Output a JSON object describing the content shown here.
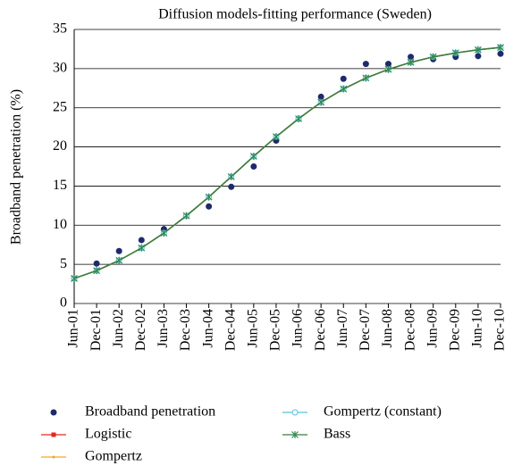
{
  "chart_data": {
    "type": "line",
    "title": "Diffusion models-fitting performance (Sweden)",
    "y_label": "Broadband penetration (%)",
    "categories": [
      "Jun-01",
      "Dec-01",
      "Jun-02",
      "Dec-02",
      "Jun-03",
      "Dec-03",
      "Jun-04",
      "Dec-04",
      "Jun-05",
      "Dec-05",
      "Jun-06",
      "Dec-06",
      "Jun-07",
      "Dec-07",
      "Jun-08",
      "Dec-08",
      "Jun-09",
      "Dec-09",
      "Jun-10",
      "Dec-10"
    ],
    "ylim": [
      0,
      35
    ],
    "yticks": [
      0,
      5,
      10,
      15,
      20,
      25,
      30,
      35
    ],
    "grid": true,
    "series": [
      {
        "name": "Broadband penetration",
        "color": "#1f2a6b",
        "marker": "circle",
        "line": false,
        "values": [
          3.2,
          5.1,
          6.7,
          8.1,
          9.5,
          11.2,
          12.4,
          14.9,
          17.5,
          20.8,
          23.6,
          26.4,
          28.7,
          30.6,
          30.6,
          31.5,
          31.2,
          31.5,
          31.6,
          31.9
        ]
      },
      {
        "name": "Logistic",
        "color": "#e3261f",
        "marker": "square",
        "line": true,
        "values": [
          3.2,
          4.2,
          5.5,
          7.1,
          9.0,
          11.2,
          13.6,
          16.2,
          18.8,
          21.3,
          23.6,
          25.7,
          27.4,
          28.8,
          29.9,
          30.8,
          31.5,
          32.0,
          32.4,
          32.7
        ]
      },
      {
        "name": "Gompertz",
        "color": "#f5a623",
        "marker": "dot",
        "line": true,
        "values": [
          3.2,
          4.2,
          5.5,
          7.1,
          9.0,
          11.2,
          13.6,
          16.2,
          18.8,
          21.3,
          23.6,
          25.7,
          27.4,
          28.8,
          29.9,
          30.8,
          31.5,
          32.0,
          32.4,
          32.7
        ]
      },
      {
        "name": "Gompertz (constant)",
        "color": "#5bc0de",
        "marker": "open-circle",
        "line": true,
        "values": [
          3.2,
          4.2,
          5.5,
          7.1,
          9.0,
          11.2,
          13.6,
          16.2,
          18.8,
          21.3,
          23.6,
          25.7,
          27.4,
          28.8,
          29.9,
          30.8,
          31.5,
          32.0,
          32.4,
          32.7
        ]
      },
      {
        "name": "Bass",
        "color": "#2e8b57",
        "marker": "star",
        "line": true,
        "values": [
          3.2,
          4.2,
          5.5,
          7.1,
          9.0,
          11.2,
          13.6,
          16.2,
          18.8,
          21.3,
          23.6,
          25.7,
          27.4,
          28.8,
          29.9,
          30.8,
          31.5,
          32.0,
          32.4,
          32.7
        ]
      }
    ]
  }
}
